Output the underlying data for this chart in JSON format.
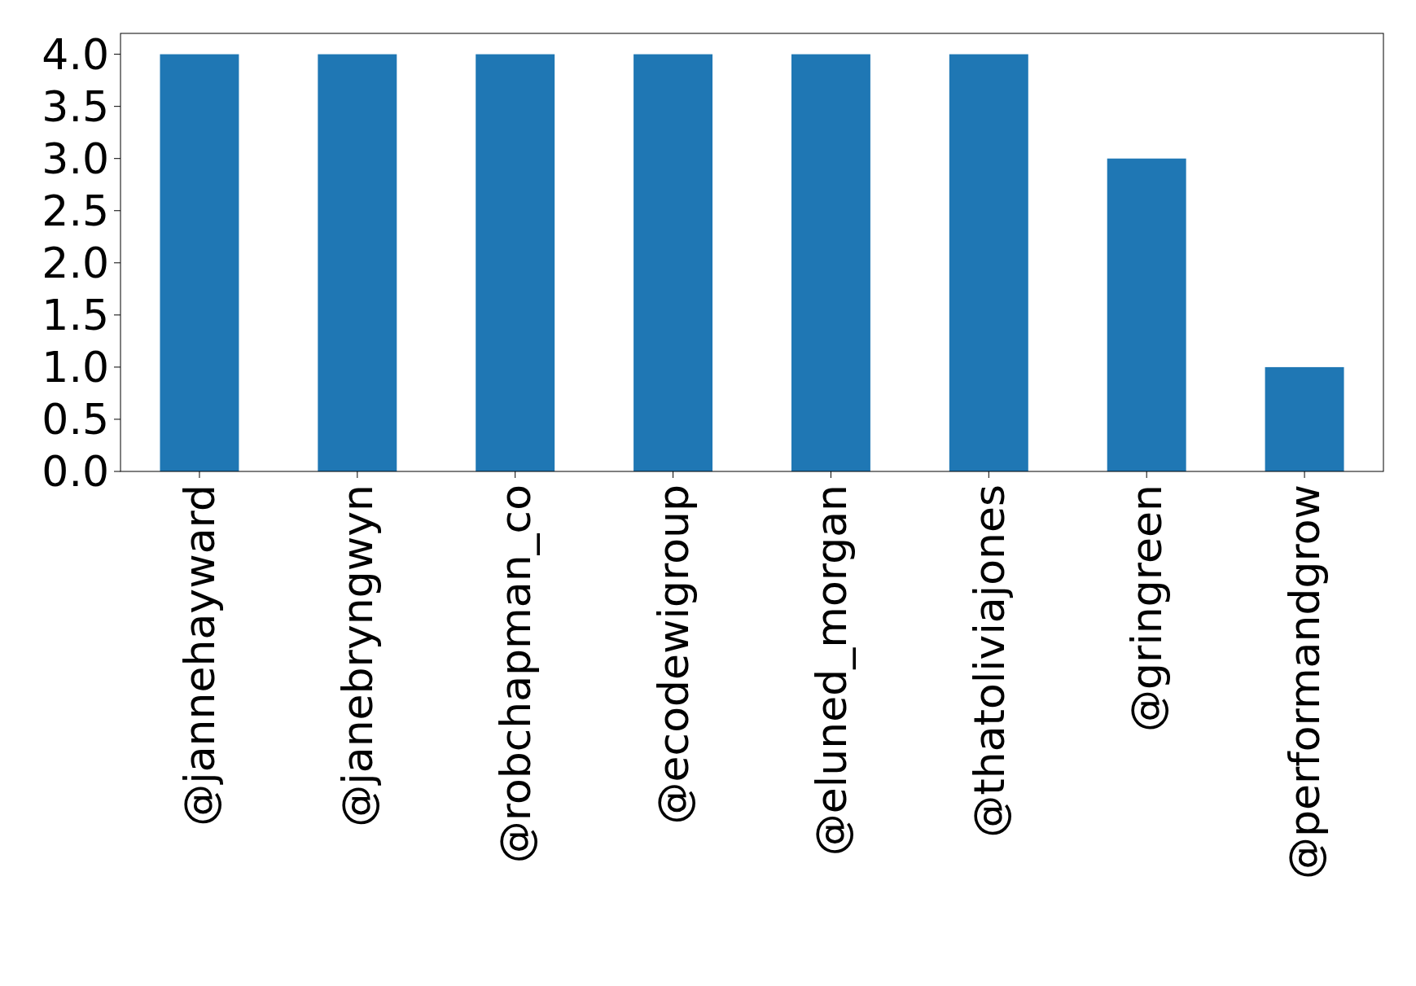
{
  "chart_data": {
    "type": "bar",
    "categories": [
      "@jannehayward",
      "@janebryngwyn",
      "@robchapman_co",
      "@ecodewigroup",
      "@eluned_morgan",
      "@thatoliviajones",
      "@gringreen",
      "@performandgrow"
    ],
    "values": [
      4,
      4,
      4,
      4,
      4,
      4,
      3,
      1
    ],
    "color": "#1f77b4",
    "ylim": [
      0,
      4.2
    ],
    "yticks": [
      {
        "value": 0,
        "label": "0.0"
      },
      {
        "value": 0.5,
        "label": "0.5"
      },
      {
        "value": 1,
        "label": "1.0"
      },
      {
        "value": 1.5,
        "label": "1.5"
      },
      {
        "value": 2,
        "label": "2.0"
      },
      {
        "value": 2.5,
        "label": "2.5"
      },
      {
        "value": 3,
        "label": "3.0"
      },
      {
        "value": 3.5,
        "label": "3.5"
      },
      {
        "value": 4,
        "label": "4.0"
      }
    ],
    "grid": false
  }
}
